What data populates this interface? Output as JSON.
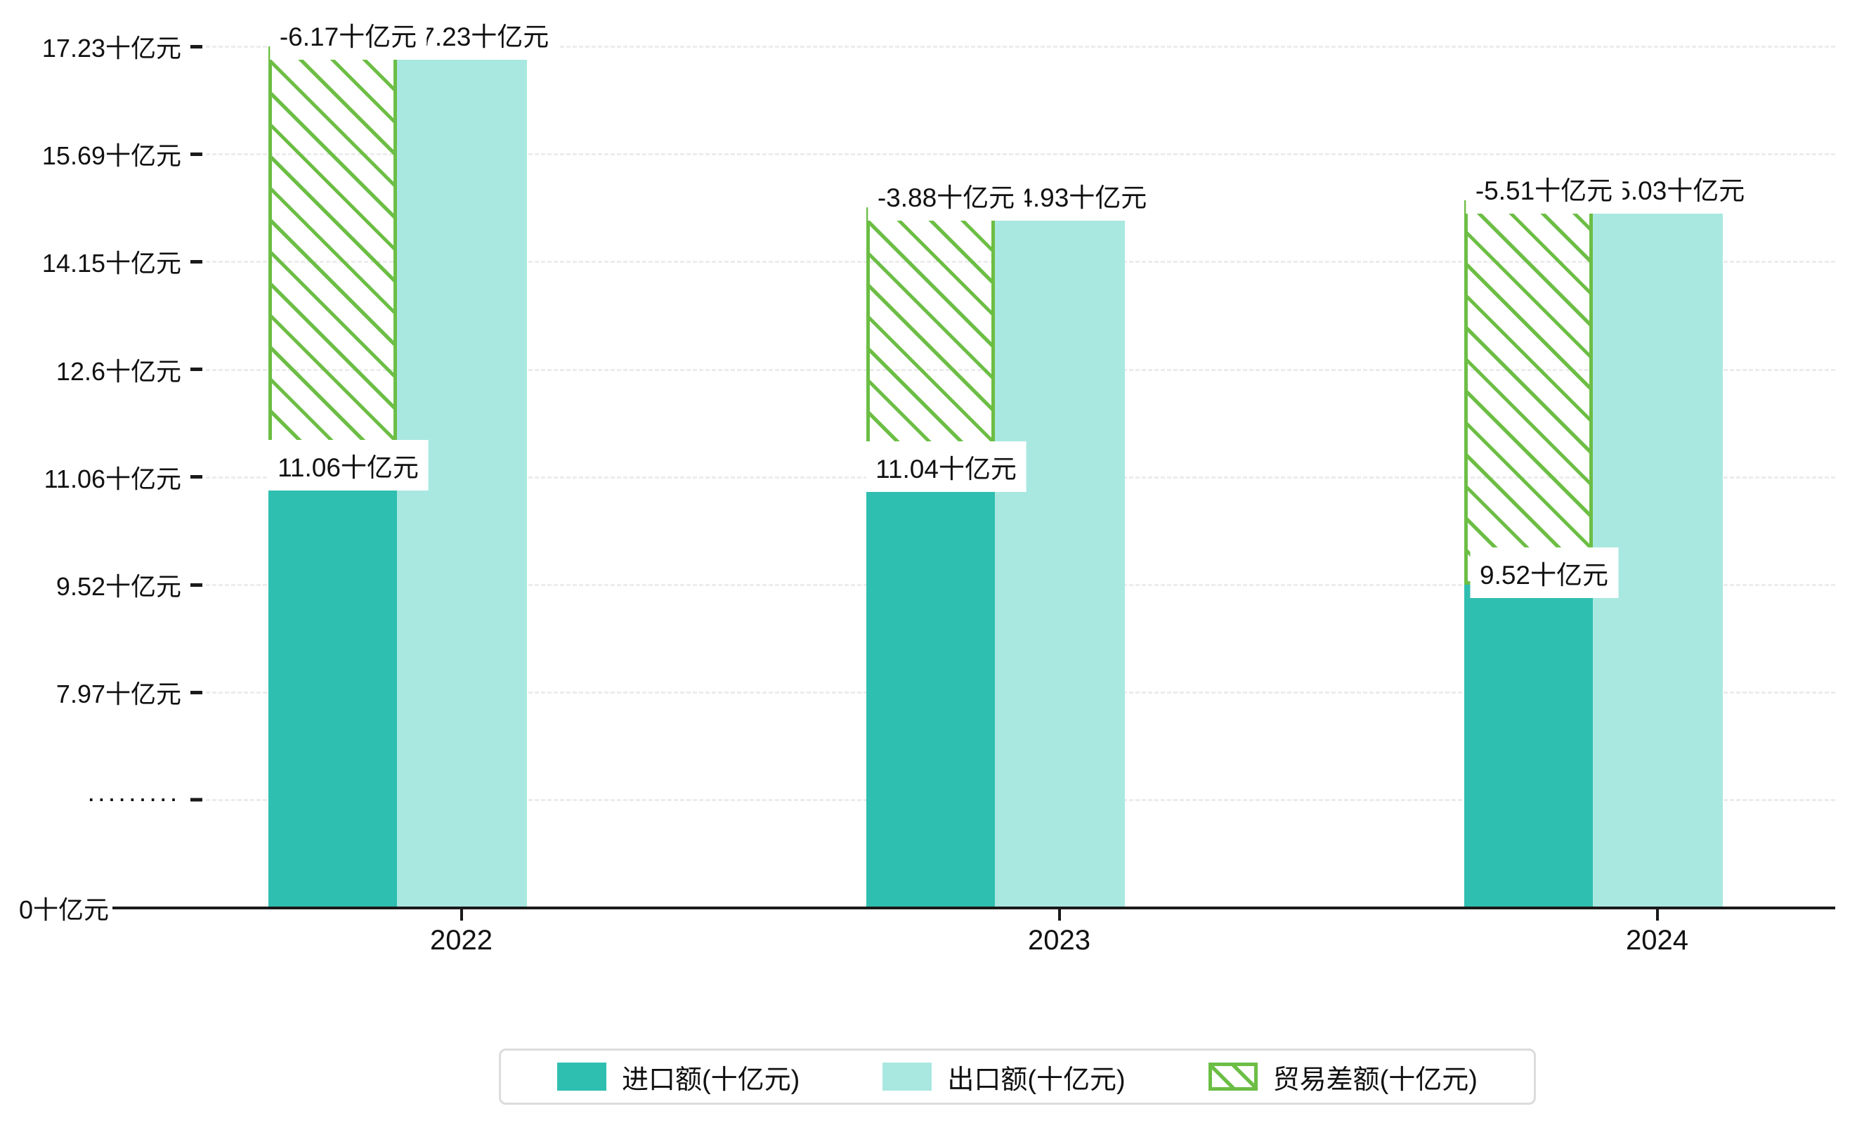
{
  "chart_data": {
    "type": "bar",
    "title": "",
    "unit": "十亿元",
    "categories": [
      "2022",
      "2023",
      "2024"
    ],
    "series": [
      {
        "name": "进口额(十亿元)",
        "values": [
          11.06,
          11.04,
          9.52
        ],
        "labels": [
          "11.06十亿元",
          "11.04十亿元",
          "9.52十亿元"
        ],
        "color": "#2FBFB0",
        "style": "solid"
      },
      {
        "name": "出口额(十亿元)",
        "values": [
          17.23,
          14.93,
          15.03
        ],
        "labels": [
          "17.23十亿元",
          "14.93十亿元",
          "15.03十亿元"
        ],
        "color": "#A9E8E1",
        "style": "solid"
      },
      {
        "name": "贸易差额(十亿元)",
        "values": [
          -6.17,
          -3.88,
          -5.51
        ],
        "labels": [
          "-6.17十亿元",
          "-3.88十亿元",
          "-5.51十亿元"
        ],
        "color": "#6CBE45",
        "style": "hatched"
      }
    ],
    "y_ticks": [
      "17.23十亿元",
      "15.69十亿元",
      "14.15十亿元",
      "12.6十亿元",
      "11.06十亿元",
      "9.52十亿元",
      "7.97十亿元",
      "·········",
      "0十亿元"
    ],
    "axis_break_tick": "·········",
    "x_tick_labels": [
      "2022",
      "2023",
      "2024"
    ],
    "legend_position": "bottom",
    "grid": "dashed-horizontal",
    "colors": {
      "import": "#2FBFB0",
      "export": "#A9E8E1",
      "trade_balance": "#6CBE45",
      "gridline": "#ECECEC",
      "axis": "#1A1A1A",
      "legend_border": "#DCDCDC",
      "label_box_bg": "#FFFFFF"
    }
  }
}
